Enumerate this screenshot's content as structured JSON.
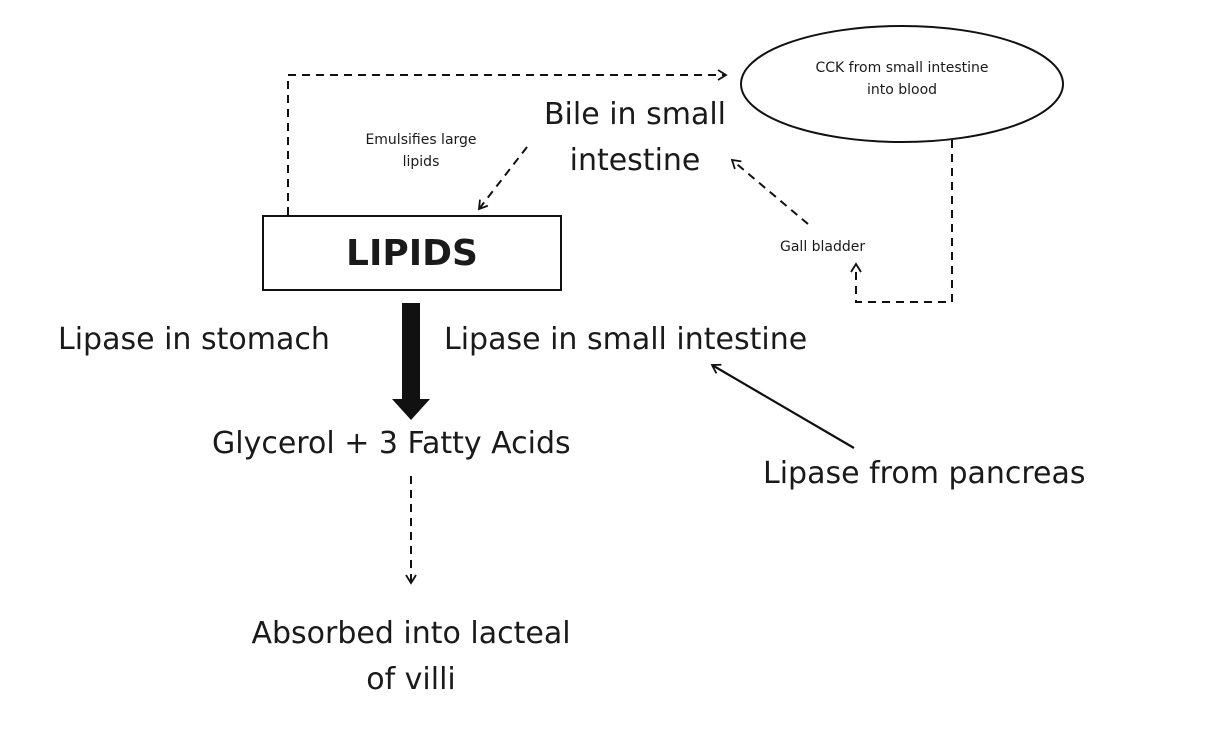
{
  "nodes": {
    "lipids": "LIPIDS",
    "cck": {
      "line1": "CCK from small intestine",
      "line2": "into blood"
    },
    "bile": {
      "line1": "Bile in small",
      "line2": "intestine"
    },
    "emulsifies": {
      "line1": "Emulsifies  large",
      "line2": "lipids"
    },
    "gall_bladder": "Gall bladder",
    "lipase_stomach": "Lipase in stomach",
    "lipase_small_intestine": "Lipase in small intestine",
    "glycerol": "Glycerol + 3 Fatty Acids",
    "lipase_pancreas": "Lipase from pancreas",
    "absorbed": {
      "line1": "Absorbed into lacteal",
      "line2": "of villi"
    }
  },
  "colors": {
    "stroke": "#111111",
    "text": "#1a1a1a",
    "background": "#ffffff"
  }
}
